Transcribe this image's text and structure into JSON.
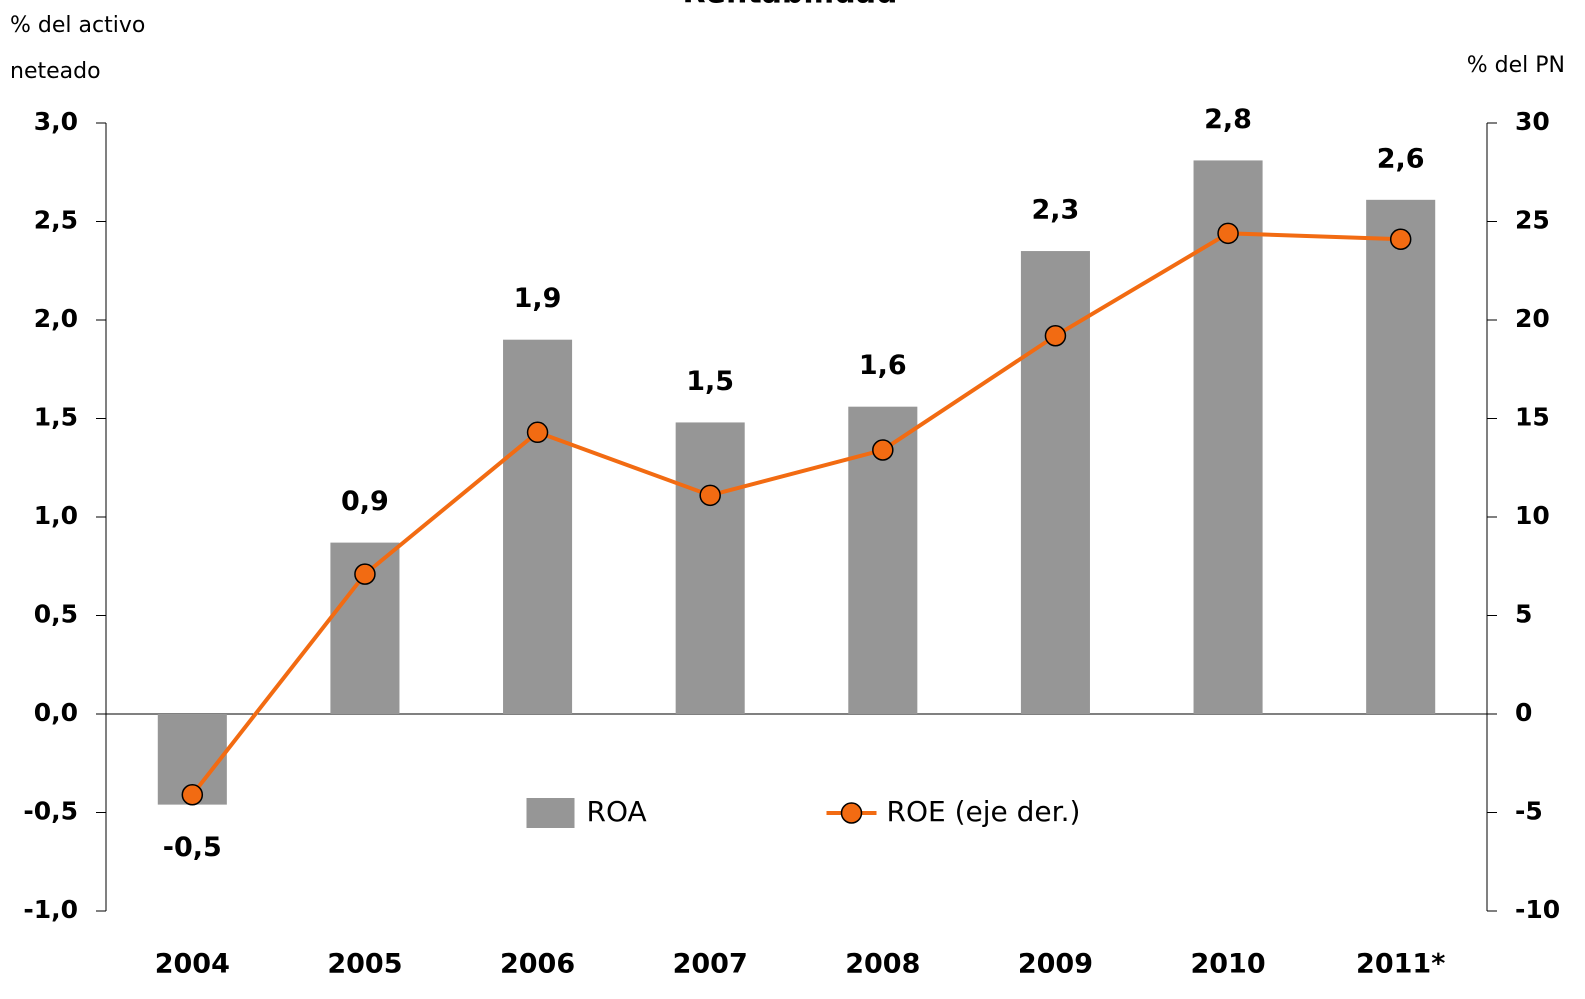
{
  "chart_data": {
    "type": "bar_line",
    "title": "Rentabilidad",
    "ylabel": [
      "% del activo",
      "neteado"
    ],
    "y2label": "% del PN",
    "categories": [
      "2004",
      "2005",
      "2006",
      "2007",
      "2008",
      "2009",
      "2010",
      "2011*"
    ],
    "series": [
      {
        "name": "ROA",
        "type": "bar",
        "color": "#969696",
        "values": [
          -0.46,
          0.87,
          1.9,
          1.48,
          1.56,
          2.35,
          2.81,
          2.61
        ],
        "value_labels": [
          "-0,5",
          "0,9",
          "1,9",
          "1,5",
          "1,6",
          "2,3",
          "2,8",
          "2,6"
        ]
      },
      {
        "name": "ROE (eje der.)",
        "type": "line",
        "axis": "y2",
        "color": "#f26b12",
        "values": [
          -4.1,
          7.1,
          14.3,
          11.1,
          13.4,
          19.2,
          24.4,
          24.1
        ]
      }
    ],
    "ylim": [
      -1,
      3
    ],
    "yticks": [
      {
        "value": -1,
        "label": "-1,0"
      },
      {
        "value": -0.5,
        "label": "-0,5"
      },
      {
        "value": 0,
        "label": "0,0"
      },
      {
        "value": 0.5,
        "label": "0,5"
      },
      {
        "value": 1,
        "label": "1,0"
      },
      {
        "value": 1.5,
        "label": "1,5"
      },
      {
        "value": 2,
        "label": "2,0"
      },
      {
        "value": 2.5,
        "label": "2,5"
      },
      {
        "value": 3,
        "label": "3,0"
      }
    ],
    "y2lim": [
      -10,
      30
    ],
    "y2ticks": [
      -10,
      -5,
      0,
      5,
      10,
      15,
      20,
      25,
      30
    ],
    "legend": "lower center"
  }
}
